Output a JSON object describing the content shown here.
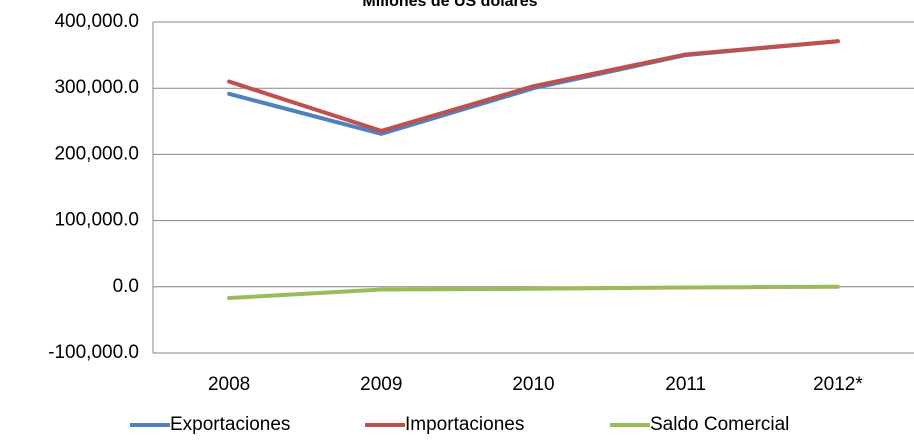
{
  "chart_data": {
    "type": "line",
    "title": "Millones de US dólares",
    "categories": [
      "2008",
      "2009",
      "2010",
      "2011",
      "2012*"
    ],
    "series": [
      {
        "name": "Exportaciones",
        "color": "#4f81bd",
        "values": [
          291500,
          231000,
          300000,
          350000,
          371000
        ]
      },
      {
        "name": "Importaciones",
        "color": "#c0504d",
        "values": [
          310000,
          235500,
          303000,
          351000,
          371000
        ]
      },
      {
        "name": "Saldo Comercial",
        "color": "#9bbb59",
        "values": [
          -17000,
          -4000,
          -3000,
          -1000,
          0
        ]
      }
    ],
    "ylim": [
      -100000,
      400000
    ],
    "yticks": [
      {
        "value": -100000,
        "label": "-100,000.0"
      },
      {
        "value": 0,
        "label": "0.0"
      },
      {
        "value": 100000,
        "label": "100,000.0"
      },
      {
        "value": 200000,
        "label": "200,000.0"
      },
      {
        "value": 300000,
        "label": "300,000.0"
      },
      {
        "value": 400000,
        "label": "400,000.0"
      }
    ],
    "grid": true,
    "legend": "bottom"
  }
}
